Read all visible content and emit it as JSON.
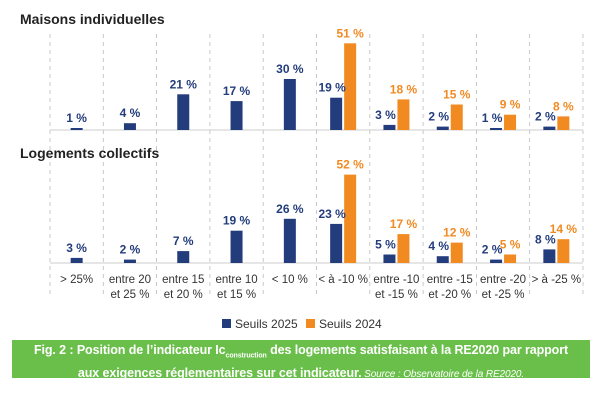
{
  "colors": {
    "seuils_2025": "#233c7c",
    "seuils_2024": "#f28a22",
    "caption_bg": "#6abf4b",
    "grid": "#bbbbbb"
  },
  "chart_data": [
    {
      "type": "bar",
      "title": "Maisons individuelles",
      "categories": [
        "> 25%",
        "entre 20 et 25 %",
        "entre 15 et 20 %",
        "entre 10 et 15 %",
        "< 10 %",
        "< à -10 %",
        "entre -10 et -15 %",
        "entre -15 et -20 %",
        "entre -20 et -25 %",
        "> à -25 %"
      ],
      "series": [
        {
          "name": "Seuils 2025",
          "values": [
            1,
            4,
            21,
            17,
            30,
            19,
            3,
            2,
            1,
            2
          ]
        },
        {
          "name": "Seuils 2024",
          "values": [
            null,
            null,
            null,
            null,
            null,
            51,
            18,
            15,
            9,
            8
          ]
        }
      ],
      "unit": "%",
      "ylim": [
        0,
        55
      ],
      "grid": "vertical dashed"
    },
    {
      "type": "bar",
      "title": "Logements collectifs",
      "categories": [
        "> 25%",
        "entre 20 et 25 %",
        "entre 15 et 20 %",
        "entre 10 et 15 %",
        "< 10 %",
        "< à -10 %",
        "entre -10 et -15 %",
        "entre -15 et -20 %",
        "entre -20 et -25 %",
        "> à -25 %"
      ],
      "series": [
        {
          "name": "Seuils 2025",
          "values": [
            3,
            2,
            7,
            19,
            26,
            23,
            5,
            4,
            2,
            8
          ]
        },
        {
          "name": "Seuils 2024",
          "values": [
            null,
            null,
            null,
            null,
            null,
            52,
            17,
            12,
            5,
            14
          ]
        }
      ],
      "unit": "%",
      "ylim": [
        0,
        55
      ],
      "grid": "vertical dashed"
    }
  ],
  "axis": {
    "category_lines": [
      [
        ">  25%"
      ],
      [
        "entre 20",
        "et 25 %"
      ],
      [
        "entre 15",
        "et 20 %"
      ],
      [
        "entre 10",
        "et 15 %"
      ],
      [
        "< 10 %"
      ],
      [
        "< à -10 %"
      ],
      [
        "entre -10",
        "et -15 %"
      ],
      [
        "entre -15",
        "et -20 %"
      ],
      [
        "entre -20",
        "et -25 %"
      ],
      [
        "> à -25 %"
      ]
    ]
  },
  "legend": {
    "position": "bottom-center",
    "items": [
      {
        "label": "Seuils 2025"
      },
      {
        "label": "Seuils 2024"
      }
    ]
  },
  "caption": {
    "prefix": "Fig. 2 : Position de l’indicateur Ic",
    "subscript": "construction",
    "suffix": " des logements satisfaisant à la RE2020 par rapport",
    "line2": "aux exigences réglementaires sur cet indicateur.",
    "source": " Source : Observatoire de la RE2020."
  }
}
